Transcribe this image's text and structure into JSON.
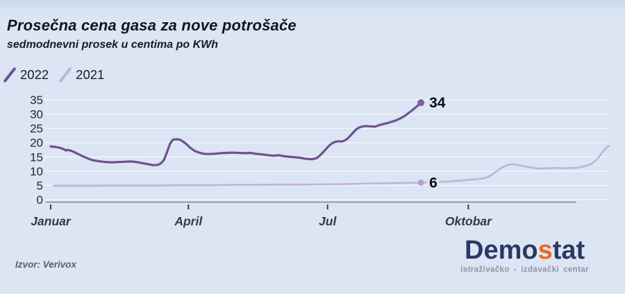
{
  "header": {
    "title": "Prosečna cena gasa za nove potrošače",
    "subtitle": "sedmodnevni prosek u centima po KWh"
  },
  "footer": {
    "source": "Izvor: Verivox",
    "logo": {
      "part1": "Demo",
      "part2": "s",
      "part3": "tat",
      "tagline": "istraživačko - izdavački centar",
      "navy": "#2b3963",
      "orange": "#f2661f",
      "tagline_color": "#8e95a2"
    }
  },
  "colors": {
    "background": "#dbe5f4",
    "gridline": "#ffffff",
    "axis": "#7f8895"
  },
  "chart_data": {
    "type": "line",
    "title": "Prosečna cena gasa za nove potrošače",
    "subtitle": "sedmodnevni prosek u centima po KWh",
    "legend_position": "top-left",
    "x_axis": {
      "tick_labels": [
        "Januar",
        "April",
        "Jul",
        "Oktobar"
      ],
      "tick_positions_day": [
        0,
        90,
        181,
        273
      ],
      "domain_days": [
        0,
        365
      ]
    },
    "y_axis": {
      "ticks": [
        0,
        5,
        10,
        15,
        20,
        25,
        30,
        35
      ],
      "min": 0,
      "max": 35,
      "gridlines": true
    },
    "series": [
      {
        "name": "2022",
        "color": "#6e5190",
        "dot_color": "#7e61a0",
        "line_width": 3.2,
        "marker": {
          "day": 242,
          "value": 34,
          "label": "34"
        },
        "points": [
          [
            0,
            18.7
          ],
          [
            3,
            18.5
          ],
          [
            6,
            18.2
          ],
          [
            9,
            17.6
          ],
          [
            10,
            17.2
          ],
          [
            11,
            17.5
          ],
          [
            13,
            17.2
          ],
          [
            15,
            16.8
          ],
          [
            18,
            16.0
          ],
          [
            21,
            15.2
          ],
          [
            24,
            14.5
          ],
          [
            27,
            13.9
          ],
          [
            30,
            13.6
          ],
          [
            33,
            13.4
          ],
          [
            36,
            13.2
          ],
          [
            40,
            13.1
          ],
          [
            44,
            13.2
          ],
          [
            48,
            13.3
          ],
          [
            52,
            13.4
          ],
          [
            55,
            13.3
          ],
          [
            58,
            13.0
          ],
          [
            61,
            12.7
          ],
          [
            64,
            12.4
          ],
          [
            67,
            12.1
          ],
          [
            70,
            12.2
          ],
          [
            72,
            12.7
          ],
          [
            74,
            13.9
          ],
          [
            76,
            16.6
          ],
          [
            78,
            19.6
          ],
          [
            80,
            21.1
          ],
          [
            83,
            21.2
          ],
          [
            85,
            20.9
          ],
          [
            88,
            19.8
          ],
          [
            91,
            18.3
          ],
          [
            94,
            17.1
          ],
          [
            97,
            16.5
          ],
          [
            100,
            16.1
          ],
          [
            103,
            16.0
          ],
          [
            107,
            16.1
          ],
          [
            111,
            16.3
          ],
          [
            115,
            16.4
          ],
          [
            119,
            16.5
          ],
          [
            123,
            16.4
          ],
          [
            127,
            16.3
          ],
          [
            131,
            16.4
          ],
          [
            134,
            16.1
          ],
          [
            138,
            15.9
          ],
          [
            142,
            15.6
          ],
          [
            146,
            15.4
          ],
          [
            149,
            15.6
          ],
          [
            152,
            15.3
          ],
          [
            155,
            15.1
          ],
          [
            159,
            14.9
          ],
          [
            163,
            14.7
          ],
          [
            166,
            14.4
          ],
          [
            168,
            14.3
          ],
          [
            171,
            14.2
          ],
          [
            174,
            14.6
          ],
          [
            176,
            15.5
          ],
          [
            178,
            16.6
          ],
          [
            180,
            17.8
          ],
          [
            182,
            18.9
          ],
          [
            184,
            19.8
          ],
          [
            186,
            20.3
          ],
          [
            188,
            20.5
          ],
          [
            190,
            20.4
          ],
          [
            192,
            20.7
          ],
          [
            194,
            21.4
          ],
          [
            196,
            22.5
          ],
          [
            198,
            23.7
          ],
          [
            200,
            24.8
          ],
          [
            202,
            25.4
          ],
          [
            204,
            25.7
          ],
          [
            206,
            25.8
          ],
          [
            209,
            25.7
          ],
          [
            212,
            25.6
          ],
          [
            215,
            26.2
          ],
          [
            218,
            26.6
          ],
          [
            221,
            27.0
          ],
          [
            224,
            27.5
          ],
          [
            227,
            28.1
          ],
          [
            230,
            28.9
          ],
          [
            232,
            29.6
          ],
          [
            234,
            30.4
          ],
          [
            236,
            31.2
          ],
          [
            238,
            32.1
          ],
          [
            240,
            33.0
          ],
          [
            242,
            34
          ]
        ]
      },
      {
        "name": "2021",
        "color": "#c2b1da",
        "dot_color": "#b3a0cf",
        "line_width": 2.6,
        "marker": {
          "day": 242,
          "value": 6,
          "label": "6"
        },
        "points": [
          [
            2,
            4.9
          ],
          [
            15,
            4.9
          ],
          [
            30,
            4.9
          ],
          [
            45,
            5.0
          ],
          [
            60,
            5.0
          ],
          [
            75,
            5.0
          ],
          [
            90,
            5.1
          ],
          [
            105,
            5.1
          ],
          [
            120,
            5.2
          ],
          [
            135,
            5.2
          ],
          [
            150,
            5.3
          ],
          [
            165,
            5.3
          ],
          [
            181,
            5.4
          ],
          [
            195,
            5.5
          ],
          [
            210,
            5.7
          ],
          [
            225,
            5.8
          ],
          [
            242,
            6.0
          ],
          [
            252,
            6.2
          ],
          [
            260,
            6.4
          ],
          [
            268,
            6.7
          ],
          [
            274,
            7.0
          ],
          [
            279,
            7.2
          ],
          [
            283,
            7.5
          ],
          [
            286,
            8.0
          ],
          [
            289,
            9.0
          ],
          [
            292,
            10.2
          ],
          [
            295,
            11.3
          ],
          [
            298,
            12.0
          ],
          [
            301,
            12.4
          ],
          [
            304,
            12.3
          ],
          [
            307,
            12.0
          ],
          [
            310,
            11.7
          ],
          [
            313,
            11.4
          ],
          [
            316,
            11.1
          ],
          [
            320,
            10.9
          ],
          [
            324,
            11.0
          ],
          [
            328,
            11.1
          ],
          [
            332,
            11.1
          ],
          [
            336,
            11.0
          ],
          [
            340,
            11.1
          ],
          [
            344,
            11.2
          ],
          [
            347,
            11.5
          ],
          [
            350,
            11.9
          ],
          [
            353,
            12.5
          ],
          [
            356,
            13.6
          ],
          [
            358,
            14.8
          ],
          [
            360,
            16.2
          ],
          [
            362,
            17.5
          ],
          [
            364,
            18.5
          ],
          [
            365,
            18.8
          ]
        ]
      }
    ]
  }
}
